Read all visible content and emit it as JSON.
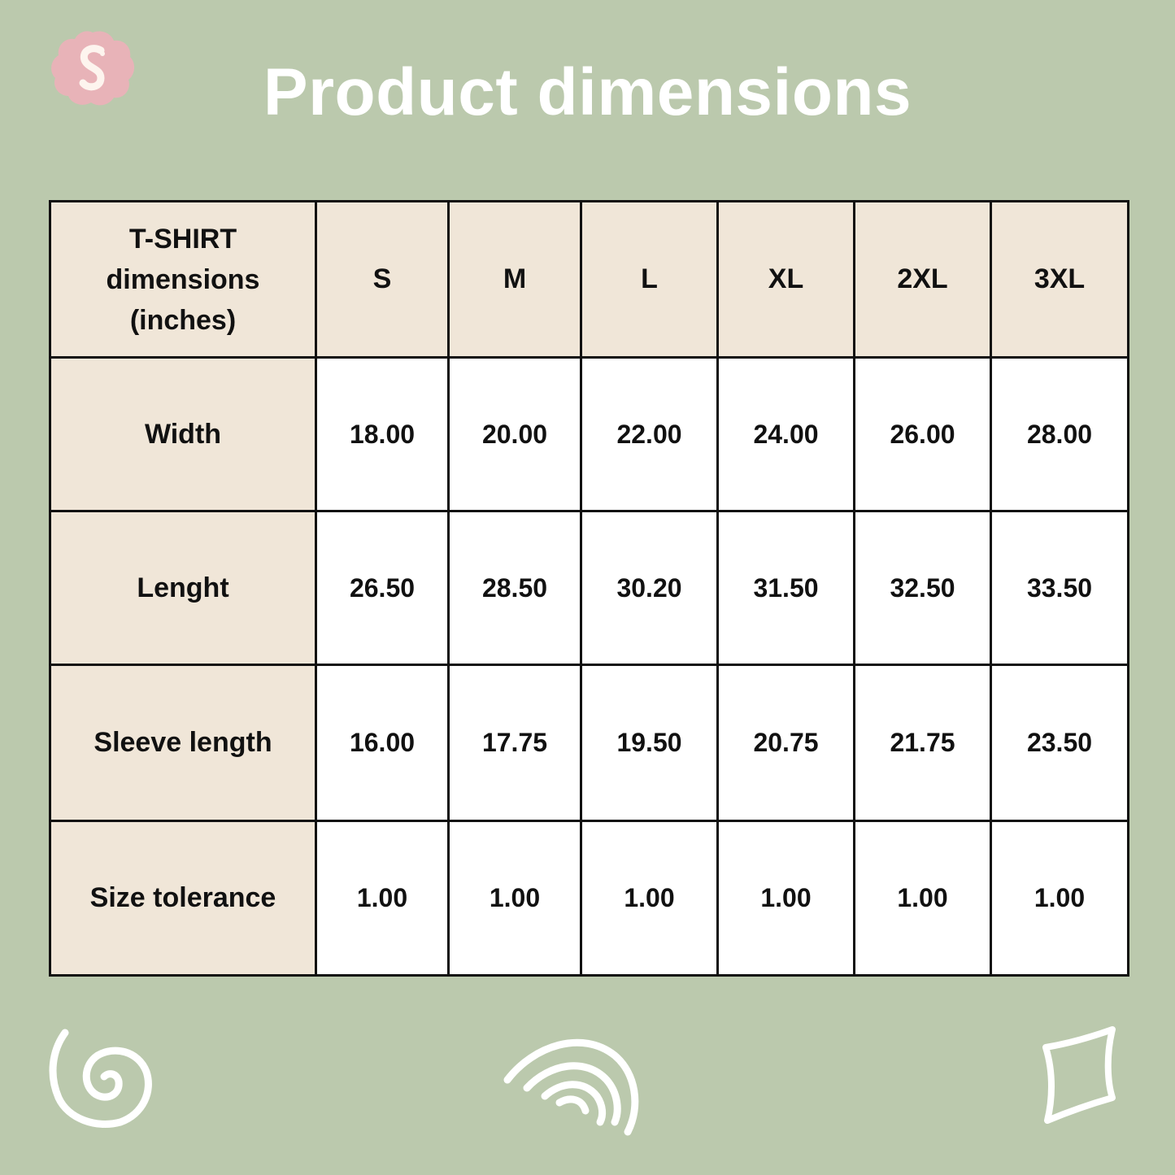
{
  "page": {
    "title": "Product dimensions",
    "background_color": "#bbc9ad",
    "header_cell_color": "#f0e6d8",
    "logo_color": "#e8b3b8"
  },
  "table": {
    "corner_lines": [
      "T-SHIRT",
      "dimensions",
      "(inches)"
    ],
    "sizes": [
      "S",
      "M",
      "L",
      "XL",
      "2XL",
      "3XL"
    ],
    "rows": [
      {
        "label": "Width",
        "values": [
          "18.00",
          "20.00",
          "22.00",
          "24.00",
          "26.00",
          "28.00"
        ]
      },
      {
        "label": "Lenght",
        "values": [
          "26.50",
          "28.50",
          "30.20",
          "31.50",
          "32.50",
          "33.50"
        ]
      },
      {
        "label": "Sleeve length",
        "values": [
          "16.00",
          "17.75",
          "19.50",
          "20.75",
          "21.75",
          "23.50"
        ]
      },
      {
        "label": "Size tolerance",
        "values": [
          "1.00",
          "1.00",
          "1.00",
          "1.00",
          "1.00",
          "1.00"
        ]
      }
    ]
  },
  "decorations": [
    "spiral-icon",
    "rainbow-icon",
    "sparkle-icon"
  ]
}
